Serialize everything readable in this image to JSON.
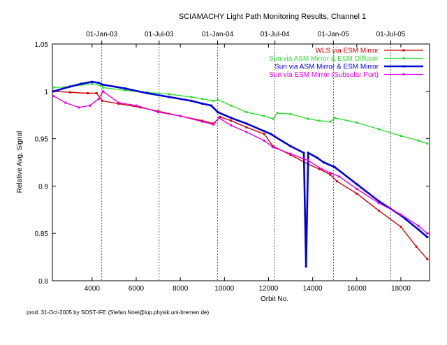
{
  "credit": "prod. 31-Oct-2005 by SOST-IFE (Stefan.Noel@iup.physik.uni-bremen.de)",
  "chart_data": {
    "type": "scatter",
    "title": "SCIAMACHY Light Path Monitoring Results, Channel 1",
    "xlabel": "Orbit No.",
    "ylabel": "Relative Avg. Signal",
    "xlim": [
      2200,
      19300
    ],
    "ylim": [
      0.8,
      1.05
    ],
    "x_ticks": [
      4000,
      6000,
      8000,
      10000,
      12000,
      14000,
      16000,
      18000
    ],
    "y_ticks": [
      0.8,
      0.85,
      0.9,
      0.95,
      1.0,
      1.05
    ],
    "y_tick_labels": [
      "0.8",
      "0.85",
      "0.9",
      "0.95",
      "1",
      "1.05"
    ],
    "top_axis": {
      "tick_labels": [
        "01-Jan-03",
        "01-Jul-03",
        "01-Jan-04",
        "01-Jul-04",
        "01-Jan-05",
        "01-Jul-05"
      ],
      "orbit_positions": [
        4440,
        7040,
        9690,
        12290,
        14940,
        17540
      ]
    },
    "grid": false,
    "legend_position": "top-right",
    "series": [
      {
        "name": "WLS via ESM Mirror",
        "color": "#d40000",
        "x": [
          2250,
          3000,
          3800,
          4200,
          4460,
          5200,
          6200,
          7000,
          8000,
          9000,
          9500,
          9800,
          10300,
          11000,
          11800,
          12200,
          13000,
          13800,
          14300,
          14800,
          15100,
          16000,
          17000,
          18000,
          18700,
          19200
        ],
        "y": [
          1.0,
          0.999,
          0.998,
          0.998,
          0.99,
          0.987,
          0.983,
          0.979,
          0.974,
          0.969,
          0.966,
          0.973,
          0.969,
          0.962,
          0.955,
          0.942,
          0.933,
          0.923,
          0.918,
          0.912,
          0.905,
          0.892,
          0.874,
          0.857,
          0.836,
          0.823
        ]
      },
      {
        "name": "Sun via ASM Mirror & ESM Diffuser",
        "color": "#33dd33",
        "x": [
          2250,
          3000,
          4000,
          4400,
          4500,
          5500,
          6500,
          7500,
          8500,
          9000,
          9500,
          9700,
          10300,
          11000,
          11800,
          12200,
          12400,
          13000,
          13800,
          14300,
          14800,
          15000,
          16000,
          17000,
          18000,
          18800,
          19200
        ],
        "y": [
          1.004,
          1.005,
          1.008,
          1.006,
          1.004,
          1.001,
          0.999,
          0.997,
          0.994,
          0.992,
          0.99,
          0.991,
          0.985,
          0.978,
          0.974,
          0.971,
          0.977,
          0.976,
          0.971,
          0.969,
          0.968,
          0.972,
          0.967,
          0.96,
          0.953,
          0.948,
          0.945
        ]
      },
      {
        "name": "Sun via ASM Mirror & ESM Mirror",
        "color": "#0000dd",
        "x": [
          2250,
          3000,
          3500,
          4000,
          4300,
          4500,
          5500,
          6500,
          7500,
          8500,
          9000,
          9400,
          9700,
          10300,
          11000,
          11800,
          12100,
          12300,
          13000,
          13600,
          13700,
          13800,
          14200,
          14500,
          15000,
          16000,
          17000,
          18000,
          18800,
          19200
        ],
        "y": [
          1.0,
          1.005,
          1.008,
          1.01,
          1.009,
          1.007,
          1.003,
          0.998,
          0.994,
          0.99,
          0.987,
          0.985,
          0.978,
          0.972,
          0.966,
          0.958,
          0.955,
          0.952,
          0.942,
          0.935,
          0.815,
          0.935,
          0.93,
          0.925,
          0.92,
          0.902,
          0.884,
          0.869,
          0.854,
          0.846
        ]
      },
      {
        "name": "Sun via ESM Mirror (Subsolar Port)",
        "color": "#e600e6",
        "x": [
          2250,
          2800,
          3400,
          3900,
          4300,
          4500,
          5200,
          6000,
          7000,
          8000,
          9000,
          9500,
          9750,
          10300,
          11000,
          11800,
          12200,
          13000,
          13800,
          14400,
          14800,
          15200,
          16000,
          17000,
          18000,
          18800,
          19200
        ],
        "y": [
          0.995,
          0.988,
          0.983,
          0.985,
          0.992,
          1.0,
          0.988,
          0.985,
          0.978,
          0.974,
          0.968,
          0.965,
          0.972,
          0.964,
          0.957,
          0.948,
          0.941,
          0.934,
          0.927,
          0.918,
          0.914,
          0.91,
          0.897,
          0.882,
          0.87,
          0.858,
          0.85
        ]
      }
    ]
  }
}
